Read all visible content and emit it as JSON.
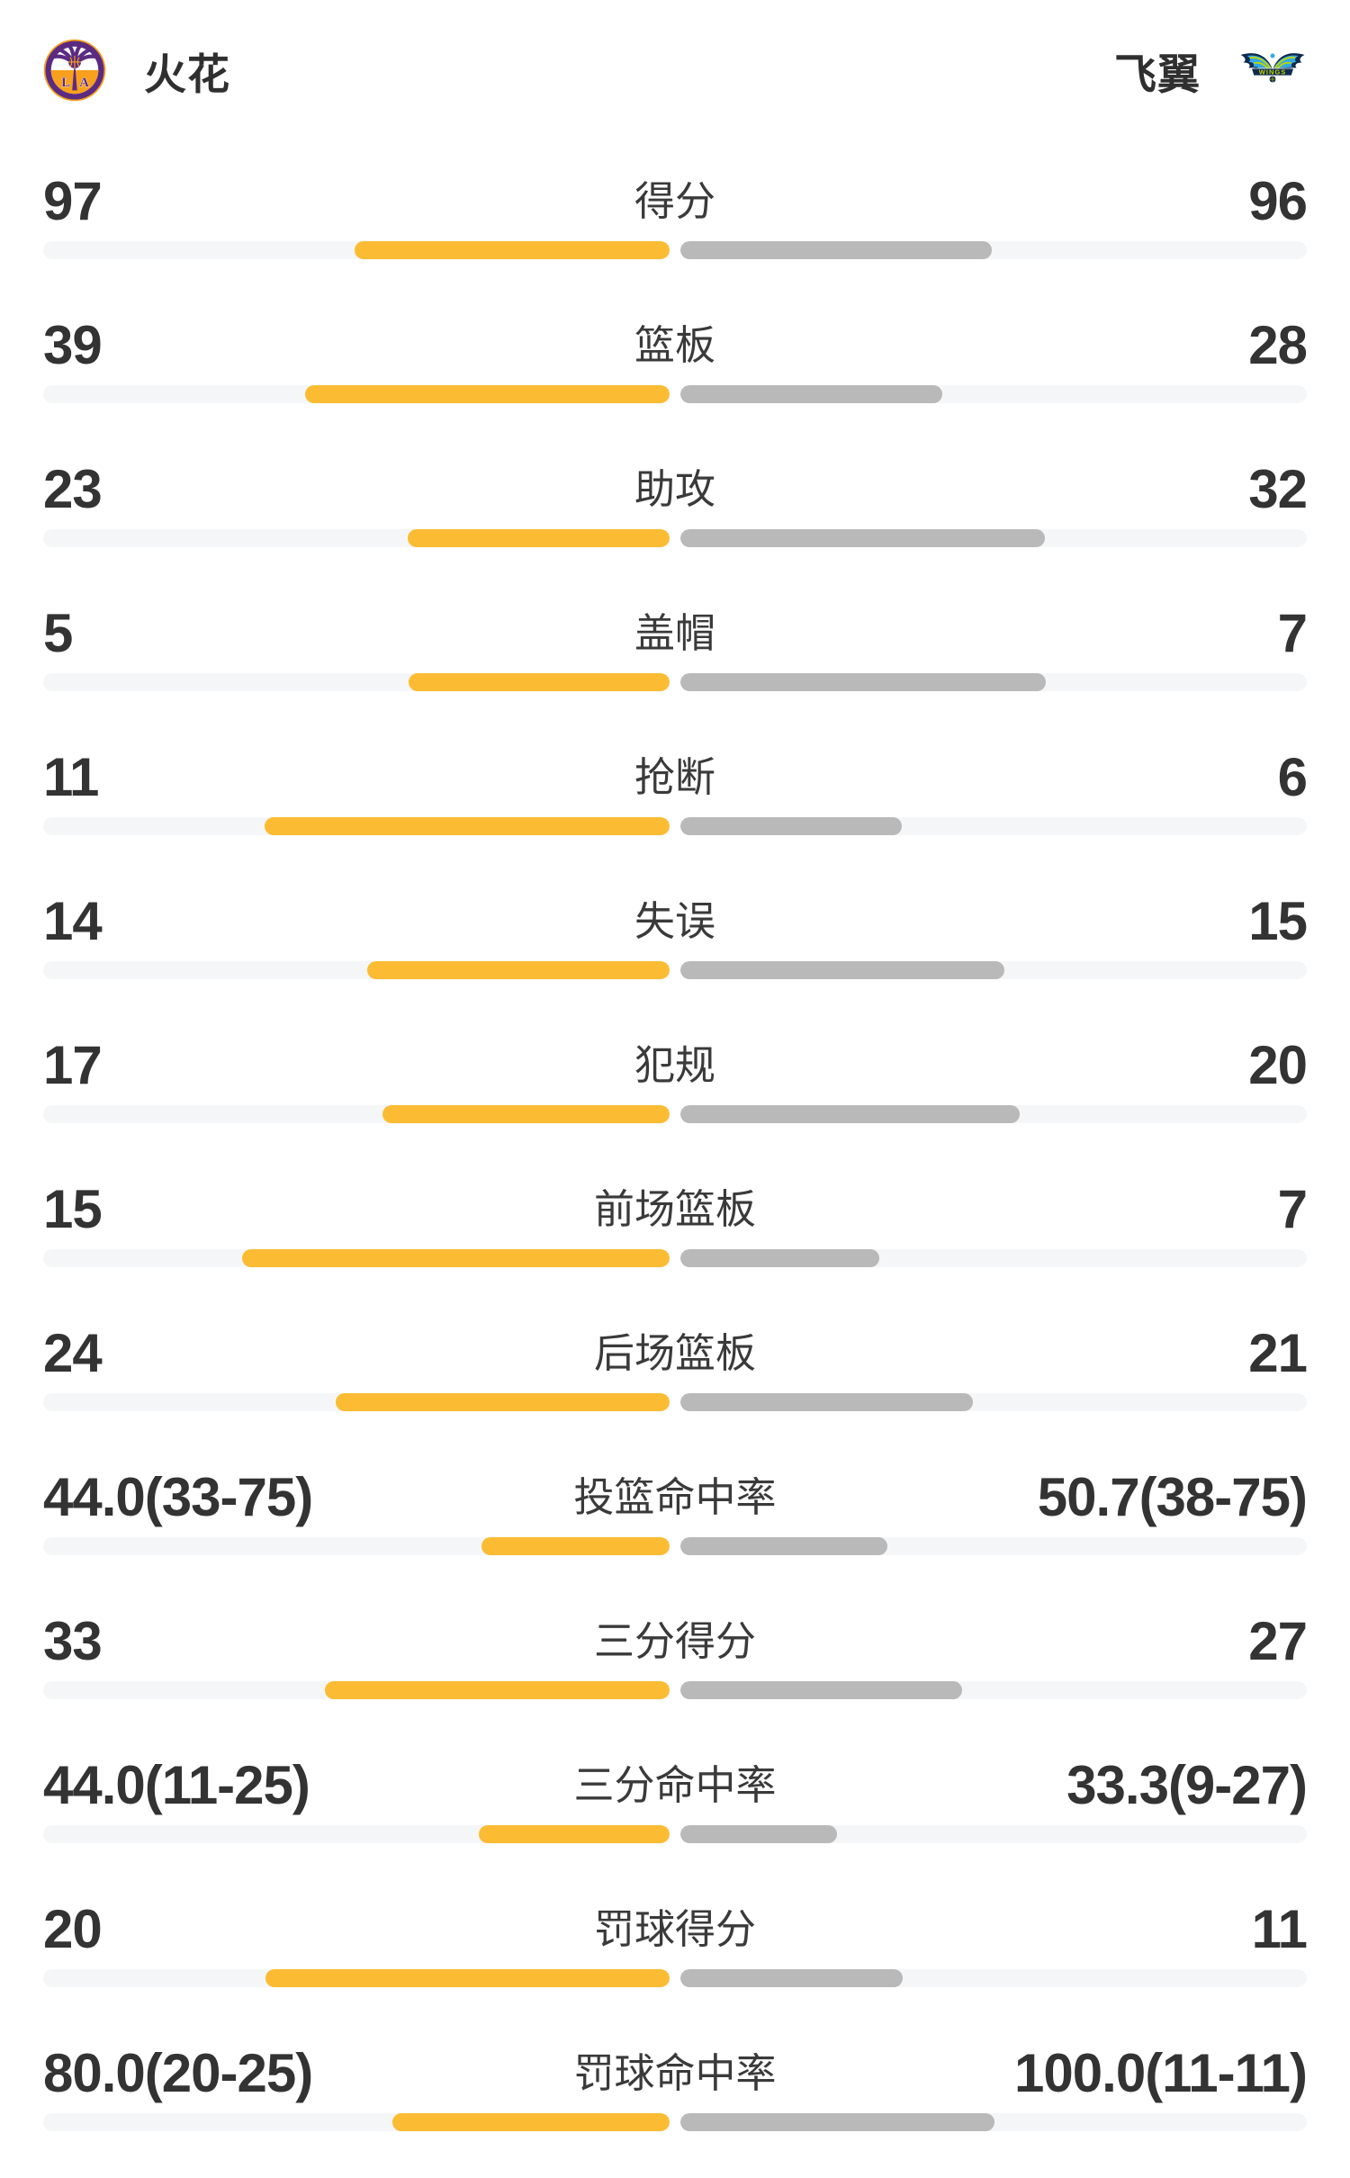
{
  "header": {
    "home": {
      "name": "火花",
      "logo_icon": "la-sparks-logo"
    },
    "away": {
      "name": "飞翼",
      "logo_icon": "dallas-wings-logo"
    }
  },
  "colors": {
    "home_bar": "#FBBC34",
    "away_bar": "#B9B9B9",
    "bar_track": "#F5F6F7",
    "text": "#333333",
    "sparks_purple": "#5B2B82",
    "sparks_gold": "#F8A01B",
    "wings_navy": "#0E2A4D",
    "wings_blue": "#37A9E1",
    "wings_lime": "#C3D600"
  },
  "stats": [
    {
      "label": "得分",
      "home": "97",
      "away": "96",
      "home_bar_pct": 50.3,
      "away_bar_pct": 49.7
    },
    {
      "label": "篮板",
      "home": "39",
      "away": "28",
      "home_bar_pct": 58.2,
      "away_bar_pct": 41.8
    },
    {
      "label": "助攻",
      "home": "23",
      "away": "32",
      "home_bar_pct": 41.8,
      "away_bar_pct": 58.2
    },
    {
      "label": "盖帽",
      "home": "5",
      "away": "7",
      "home_bar_pct": 41.7,
      "away_bar_pct": 58.3
    },
    {
      "label": "抢断",
      "home": "11",
      "away": "6",
      "home_bar_pct": 64.7,
      "away_bar_pct": 35.3
    },
    {
      "label": "失误",
      "home": "14",
      "away": "15",
      "home_bar_pct": 48.3,
      "away_bar_pct": 51.7
    },
    {
      "label": "犯规",
      "home": "17",
      "away": "20",
      "home_bar_pct": 45.9,
      "away_bar_pct": 54.1
    },
    {
      "label": "前场篮板",
      "home": "15",
      "away": "7",
      "home_bar_pct": 68.2,
      "away_bar_pct": 31.8
    },
    {
      "label": "后场篮板",
      "home": "24",
      "away": "21",
      "home_bar_pct": 53.3,
      "away_bar_pct": 46.7
    },
    {
      "label": "投篮命中率",
      "home": "44.0(33-75)",
      "away": "50.7(38-75)",
      "home_bar_pct": 30.0,
      "away_bar_pct": 33.1
    },
    {
      "label": "三分得分",
      "home": "33",
      "away": "27",
      "home_bar_pct": 55.0,
      "away_bar_pct": 45.0
    },
    {
      "label": "三分命中率",
      "home": "44.0(11-25)",
      "away": "33.3(9-27)",
      "home_bar_pct": 30.4,
      "away_bar_pct": 25.0
    },
    {
      "label": "罚球得分",
      "home": "20",
      "away": "11",
      "home_bar_pct": 64.5,
      "away_bar_pct": 35.5
    },
    {
      "label": "罚球命中率",
      "home": "80.0(20-25)",
      "away": "100.0(11-11)",
      "home_bar_pct": 44.2,
      "away_bar_pct": 50.1
    }
  ]
}
